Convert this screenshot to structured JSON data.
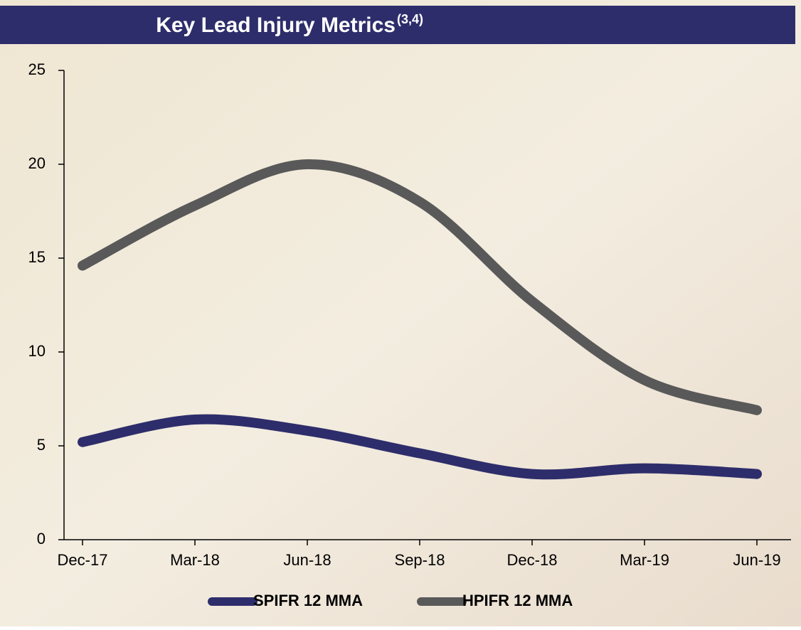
{
  "chart_data": {
    "type": "line",
    "title": "Key Lead Injury Metrics",
    "title_note": "(3,4)",
    "categories": [
      "Dec-17",
      "Mar-18",
      "Jun-18",
      "Sep-18",
      "Dec-18",
      "Mar-19",
      "Jun-19"
    ],
    "series": [
      {
        "name": "SPIFR 12 MMA",
        "color": "#2e2d6b",
        "values": [
          5.2,
          6.4,
          5.8,
          4.6,
          3.5,
          3.8,
          3.5
        ]
      },
      {
        "name": "HPIFR 12 MMA",
        "color": "#595959",
        "values": [
          14.6,
          17.8,
          20.0,
          18.0,
          12.7,
          8.5,
          6.9
        ]
      }
    ],
    "ylim": [
      0,
      25
    ],
    "yticks": [
      0,
      5,
      10,
      15,
      20,
      25
    ],
    "grid": false,
    "legend": "bottom"
  }
}
